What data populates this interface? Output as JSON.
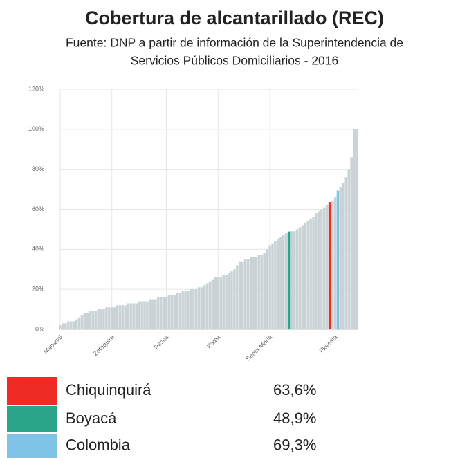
{
  "chart_data": {
    "type": "bar",
    "title": "Cobertura de alcantarillado (REC)",
    "subtitle": [
      "Fuente: DNP a partir de información de la Superintendencia de",
      "Servicios Públicos Domiciliarios - 2016"
    ],
    "categories": [
      "Macanal",
      null,
      null,
      null,
      null,
      null,
      null,
      null,
      null,
      null,
      null,
      null,
      null,
      null,
      null,
      null,
      null,
      null,
      null,
      "Zetaquira",
      null,
      null,
      null,
      null,
      null,
      null,
      null,
      null,
      null,
      null,
      null,
      null,
      null,
      null,
      null,
      null,
      null,
      null,
      null,
      "Pesca",
      null,
      null,
      null,
      null,
      null,
      null,
      null,
      null,
      null,
      null,
      null,
      null,
      null,
      null,
      null,
      null,
      null,
      null,
      "Paipa",
      null,
      null,
      null,
      null,
      null,
      null,
      null,
      null,
      null,
      null,
      null,
      null,
      null,
      null,
      null,
      null,
      null,
      null,
      "Santa María",
      null,
      null,
      null,
      null,
      null,
      null,
      null,
      null,
      null,
      null,
      null,
      null,
      null,
      null,
      null,
      null,
      null,
      null,
      null,
      null,
      null,
      null,
      null,
      "Floresta",
      null,
      null,
      null,
      null,
      null,
      null,
      null,
      null
    ],
    "values": [
      2,
      3,
      3,
      4,
      4,
      4,
      5,
      6,
      7,
      8,
      8,
      9,
      9,
      9,
      10,
      10,
      10,
      11,
      11,
      11,
      11,
      12,
      12,
      12,
      12,
      13,
      13,
      13,
      13,
      14,
      14,
      14,
      14,
      15,
      15,
      15,
      16,
      16,
      16,
      16,
      17,
      17,
      17,
      18,
      18,
      19,
      19,
      19,
      20,
      20,
      20,
      21,
      21,
      22,
      23,
      24,
      25,
      26,
      26,
      26,
      27,
      27,
      28,
      29,
      30,
      32,
      34,
      34,
      35,
      35,
      36,
      36,
      36,
      37,
      37,
      38,
      40,
      42,
      43,
      44,
      45,
      46,
      47,
      48,
      48.9,
      49,
      49,
      50,
      51,
      52,
      53,
      54,
      55,
      56,
      58,
      59,
      60,
      61,
      62,
      63.6,
      64,
      66,
      69.3,
      71,
      73,
      76,
      80,
      86,
      100,
      100
    ],
    "colors": [
      "#c9d3d6",
      "#c9d3d6",
      "#c9d3d6",
      "#c9d3d6",
      "#c9d3d6",
      "#c9d3d6",
      "#c9d3d6",
      "#c9d3d6",
      "#c9d3d6",
      "#c9d3d6",
      "#c9d3d6",
      "#c9d3d6",
      "#c9d3d6",
      "#c9d3d6",
      "#c9d3d6",
      "#c9d3d6",
      "#c9d3d6",
      "#c9d3d6",
      "#c9d3d6",
      "#c9d3d6",
      "#c9d3d6",
      "#c9d3d6",
      "#c9d3d6",
      "#c9d3d6",
      "#c9d3d6",
      "#c9d3d6",
      "#c9d3d6",
      "#c9d3d6",
      "#c9d3d6",
      "#c9d3d6",
      "#c9d3d6",
      "#c9d3d6",
      "#c9d3d6",
      "#c9d3d6",
      "#c9d3d6",
      "#c9d3d6",
      "#c9d3d6",
      "#c9d3d6",
      "#c9d3d6",
      "#c9d3d6",
      "#c9d3d6",
      "#c9d3d6",
      "#c9d3d6",
      "#c9d3d6",
      "#c9d3d6",
      "#c9d3d6",
      "#c9d3d6",
      "#c9d3d6",
      "#c9d3d6",
      "#c9d3d6",
      "#c9d3d6",
      "#c9d3d6",
      "#c9d3d6",
      "#c9d3d6",
      "#c9d3d6",
      "#c9d3d6",
      "#c9d3d6",
      "#c9d3d6",
      "#c9d3d6",
      "#c9d3d6",
      "#c9d3d6",
      "#c9d3d6",
      "#c9d3d6",
      "#c9d3d6",
      "#c9d3d6",
      "#c9d3d6",
      "#c9d3d6",
      "#c9d3d6",
      "#c9d3d6",
      "#c9d3d6",
      "#c9d3d6",
      "#c9d3d6",
      "#c9d3d6",
      "#c9d3d6",
      "#c9d3d6",
      "#c9d3d6",
      "#c9d3d6",
      "#c9d3d6",
      "#c9d3d6",
      "#c9d3d6",
      "#c9d3d6",
      "#c9d3d6",
      "#c9d3d6",
      "#c9d3d6",
      "#2aa58a",
      "#c9d3d6",
      "#c9d3d6",
      "#c9d3d6",
      "#c9d3d6",
      "#c9d3d6",
      "#c9d3d6",
      "#c9d3d6",
      "#c9d3d6",
      "#c9d3d6",
      "#c9d3d6",
      "#c9d3d6",
      "#c9d3d6",
      "#c9d3d6",
      "#c9d3d6",
      "#ee2b24",
      "#c9d3d6",
      "#c9d3d6",
      "#7fc3e6",
      "#c9d3d6",
      "#c9d3d6",
      "#c9d3d6",
      "#c9d3d6",
      "#c9d3d6",
      "#c9d3d6",
      "#c9d3d6"
    ],
    "ylim": [
      0,
      120
    ],
    "yticks": [
      {
        "value": 0,
        "label": "0%"
      },
      {
        "value": 20,
        "label": "20%"
      },
      {
        "value": 40,
        "label": "40%"
      },
      {
        "value": 60,
        "label": "60%"
      },
      {
        "value": 80,
        "label": "80%"
      },
      {
        "value": 100,
        "label": "100%"
      },
      {
        "value": 120,
        "label": "120%"
      }
    ],
    "grid": true,
    "legend": {
      "names": [
        "Chiquinquirá",
        "Boyacá",
        "Colombia"
      ],
      "colors": [
        "#ee2b24",
        "#2aa58a",
        "#7fc3e6"
      ],
      "values": [
        63.6,
        48.9,
        69.3
      ],
      "value_labels": [
        "63,6%",
        "48,9%",
        "69,3%"
      ]
    }
  }
}
